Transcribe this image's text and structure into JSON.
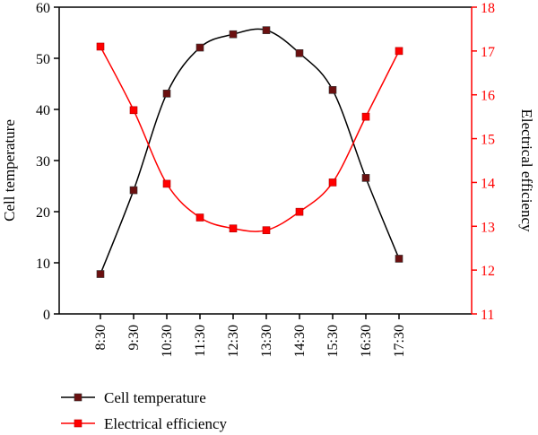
{
  "chart_data": {
    "type": "line",
    "categories": [
      "8:30",
      "9:30",
      "10:30",
      "11:30",
      "12:30",
      "13:30",
      "14:30",
      "15:30",
      "16:30",
      "17:30"
    ],
    "series": [
      {
        "name": "Cell temperature",
        "axis": "left",
        "color": "#6b1010",
        "values": [
          7.8,
          24.2,
          43.1,
          52.1,
          54.7,
          55.5,
          51.0,
          43.8,
          26.6,
          10.8
        ]
      },
      {
        "name": "Electrical efficiency",
        "axis": "right",
        "color": "#ff0000",
        "values": [
          17.1,
          15.65,
          13.97,
          13.2,
          12.95,
          12.91,
          13.33,
          14.0,
          15.5,
          17.0
        ]
      }
    ],
    "ylabel": "Cell temperature",
    "y2label": "Electrical efficiency",
    "ylim": [
      0,
      60
    ],
    "yticks": [
      0,
      10,
      20,
      30,
      40,
      50,
      60
    ],
    "y2lim": [
      11,
      18
    ],
    "y2ticks": [
      11,
      12,
      13,
      14,
      15,
      16,
      17,
      18
    ],
    "grid": false,
    "legend_position": "bottom-left"
  }
}
